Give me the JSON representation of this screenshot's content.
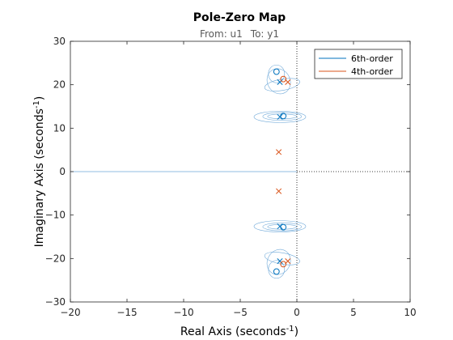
{
  "chart_data": {
    "type": "scatter",
    "title": "Pole-Zero Map",
    "subtitle_from_label": "From: u1",
    "subtitle_to_label": "To: y1",
    "xlabel_text": "Real Axis (seconds",
    "ylabel_text": "Imaginary Axis (seconds",
    "label_exponent": "-1",
    "label_close": ")",
    "xlim": [
      -20,
      10
    ],
    "ylim": [
      -30,
      30
    ],
    "xticks": [
      -20,
      -15,
      -10,
      -5,
      0,
      5,
      10
    ],
    "yticks": [
      -30,
      -20,
      -10,
      0,
      10,
      20,
      30
    ],
    "grid": false,
    "legend_position": "top-right",
    "series": [
      {
        "name": "6th-order",
        "color": "#0072BD",
        "poles": [
          [
            -1.5,
            20.6
          ],
          [
            -1.5,
            -20.6
          ],
          [
            -1.5,
            12.6
          ],
          [
            -1.5,
            -12.6
          ]
        ],
        "zeros": [
          [
            -1.8,
            23.0
          ],
          [
            -1.8,
            -23.0
          ],
          [
            -1.2,
            12.8
          ],
          [
            -1.2,
            -12.8
          ]
        ]
      },
      {
        "name": "4th-order",
        "color": "#D95319",
        "poles": [
          [
            -0.8,
            20.6
          ],
          [
            -0.8,
            -20.6
          ],
          [
            -1.6,
            4.5
          ],
          [
            -1.6,
            -4.5
          ]
        ],
        "zeros": [
          [
            -1.2,
            21.3
          ],
          [
            -1.2,
            -21.3
          ]
        ]
      }
    ],
    "uncertainty_ellipses_color": "#6ea8d8"
  }
}
